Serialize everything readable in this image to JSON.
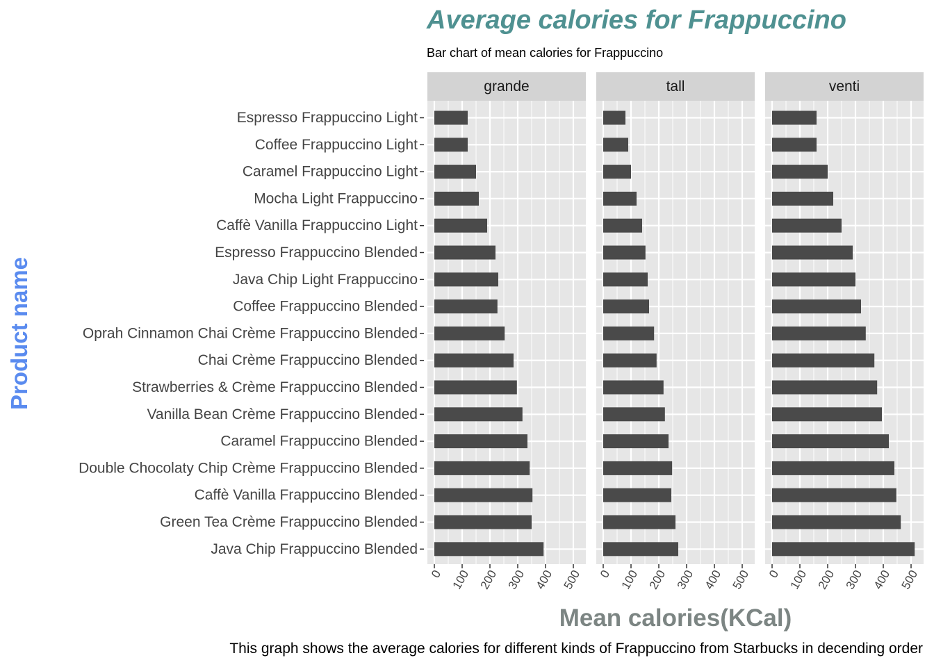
{
  "chart_data": {
    "type": "bar",
    "orientation": "horizontal",
    "title": "Average calories for Frappuccino",
    "subtitle": "Bar chart of mean calories for Frappuccino",
    "caption": "This graph shows the average calories for different kinds of Frappuccino from Starbucks in decending order",
    "xlabel": "Mean calories(KCal)",
    "ylabel": "Product name",
    "xlim": [
      0,
      525
    ],
    "x_ticks": [
      0,
      100,
      200,
      300,
      400,
      500
    ],
    "grid": true,
    "categories": [
      "Espresso Frappuccino Light",
      "Coffee Frappuccino Light",
      "Caramel Frappuccino Light",
      "Mocha Light Frappuccino",
      "Caffè Vanilla Frappuccino Light",
      "Espresso Frappuccino Blended",
      "Java Chip Light Frappuccino",
      "Coffee Frappuccino Blended",
      "Oprah Cinnamon Chai Crème Frappuccino Blended",
      "Chai Crème Frappuccino Blended",
      "Strawberries & Crème Frappuccino Blended",
      "Vanilla Bean Crème Frappuccino Blended",
      "Caramel Frappuccino Blended",
      "Double Chocolaty Chip Crème Frappuccino Blended",
      "Caffè Vanilla Frappuccino Blended",
      "Green Tea Crème Frappuccino Blended",
      "Java Chip Frappuccino Blended"
    ],
    "panels": [
      {
        "name": "grande",
        "values": [
          120,
          120,
          150,
          160,
          190,
          220,
          230,
          227,
          253,
          285,
          297,
          317,
          335,
          343,
          353,
          350,
          393
        ]
      },
      {
        "name": "tall",
        "values": [
          80,
          90,
          100,
          120,
          140,
          152,
          160,
          165,
          183,
          192,
          217,
          222,
          235,
          248,
          245,
          260,
          270
        ]
      },
      {
        "name": "venti",
        "values": [
          160,
          160,
          200,
          220,
          250,
          290,
          300,
          320,
          337,
          368,
          378,
          395,
          420,
          440,
          447,
          463,
          513
        ]
      }
    ],
    "colors": {
      "bar": "#4a4a4a",
      "panel_bg": "#e6e6e6",
      "grid": "#ffffff",
      "strip_bg": "#d3d3d3",
      "title": "#4f9191",
      "ylabel": "#5a8bef",
      "xlabel": "#7c8583",
      "tick_text": "#444444"
    }
  }
}
